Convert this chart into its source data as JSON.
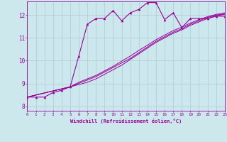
{
  "xlabel": "Windchill (Refroidissement éolien,°C)",
  "background_color": "#cce8ec",
  "grid_color": "#aaccd4",
  "line_color": "#990099",
  "xlim": [
    0,
    23
  ],
  "ylim": [
    7.8,
    12.6
  ],
  "yticks": [
    8,
    9,
    10,
    11,
    12
  ],
  "xticks": [
    0,
    1,
    2,
    3,
    4,
    5,
    6,
    7,
    8,
    9,
    10,
    11,
    12,
    13,
    14,
    15,
    16,
    17,
    18,
    19,
    20,
    21,
    22,
    23
  ],
  "series1_x": [
    0,
    1,
    2,
    3,
    4,
    5,
    6,
    7,
    8,
    9,
    10,
    11,
    12,
    13,
    14,
    15,
    16,
    17,
    18,
    19,
    20,
    21,
    22,
    23
  ],
  "series1_y": [
    8.4,
    8.4,
    8.4,
    8.6,
    8.7,
    8.85,
    10.2,
    11.6,
    11.85,
    11.85,
    12.2,
    11.75,
    12.1,
    12.25,
    12.55,
    12.55,
    11.8,
    12.1,
    11.45,
    11.85,
    11.85,
    11.85,
    11.95,
    11.95
  ],
  "series2_x": [
    0,
    5,
    6,
    7,
    8,
    9,
    10,
    11,
    12,
    13,
    14,
    15,
    16,
    17,
    18,
    19,
    20,
    21,
    22,
    23
  ],
  "series2_y": [
    8.4,
    8.85,
    9.0,
    9.15,
    9.3,
    9.5,
    9.7,
    9.9,
    10.1,
    10.35,
    10.6,
    10.85,
    11.05,
    11.25,
    11.4,
    11.6,
    11.75,
    11.9,
    12.0,
    12.05
  ],
  "series3_x": [
    0,
    5,
    6,
    7,
    8,
    9,
    10,
    11,
    12,
    13,
    14,
    15,
    16,
    17,
    18,
    19,
    20,
    21,
    22,
    23
  ],
  "series3_y": [
    8.4,
    8.85,
    8.95,
    9.05,
    9.2,
    9.4,
    9.6,
    9.8,
    10.05,
    10.3,
    10.55,
    10.8,
    11.0,
    11.2,
    11.35,
    11.55,
    11.7,
    11.85,
    11.97,
    12.03
  ],
  "series4_x": [
    0,
    5,
    6,
    7,
    8,
    9,
    10,
    11,
    12,
    13,
    14,
    15,
    16,
    17,
    18,
    19,
    20,
    21,
    22,
    23
  ],
  "series4_y": [
    8.4,
    8.85,
    9.05,
    9.2,
    9.35,
    9.55,
    9.75,
    9.98,
    10.2,
    10.45,
    10.68,
    10.92,
    11.12,
    11.32,
    11.47,
    11.65,
    11.8,
    11.93,
    12.03,
    12.1
  ]
}
